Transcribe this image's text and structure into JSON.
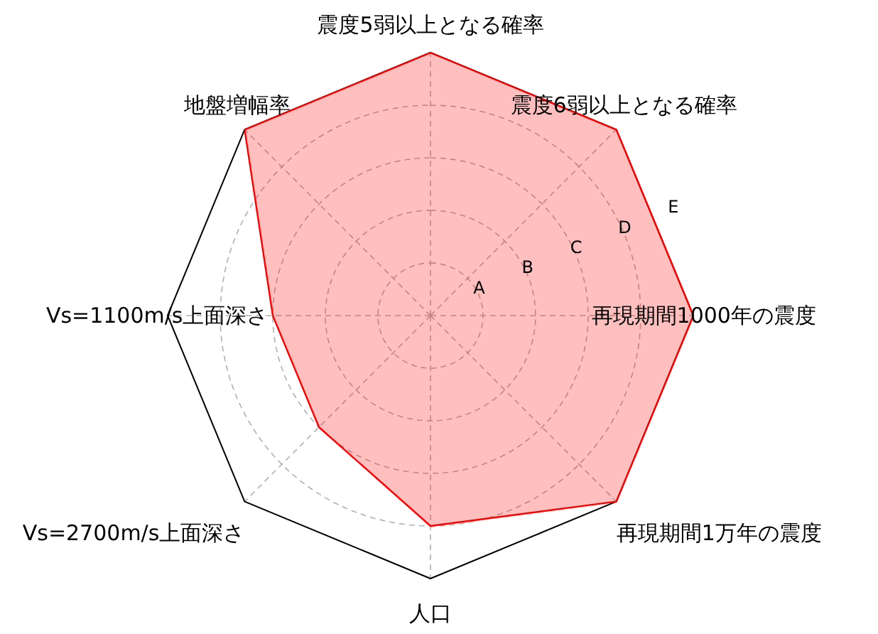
{
  "chart_data": {
    "type": "radar",
    "categories": [
      "震度5弱以上となる確率",
      "震度6弱以上となる確率",
      "再現期間1000年の震度",
      "再現期間1万年の震度",
      "人口",
      "Vs=2700m/s上面深さ",
      "Vs=1100m/s上面深さ",
      "地盤増幅率"
    ],
    "series": [
      {
        "color": "#ff0000",
        "values": [
          5,
          5,
          5,
          5,
          4,
          3,
          3,
          5
        ]
      }
    ],
    "ylim": [
      0,
      5
    ],
    "yticks": [
      {
        "value": 1,
        "label": "A"
      },
      {
        "value": 2,
        "label": "B"
      },
      {
        "value": 3,
        "label": "C"
      },
      {
        "value": 4,
        "label": "D"
      },
      {
        "value": 5,
        "label": "E"
      }
    ],
    "grid": true
  }
}
